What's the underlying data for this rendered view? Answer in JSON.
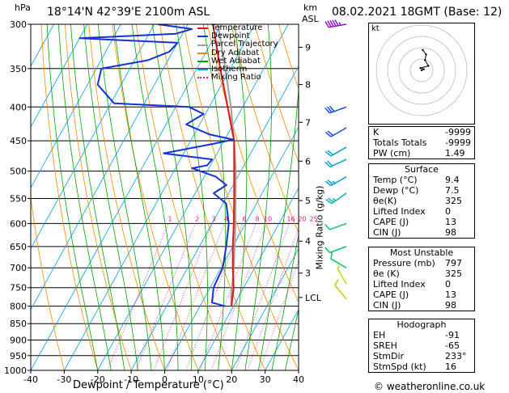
{
  "header": {
    "p_unit": "hPa",
    "location": "18°14'N 42°39'E 2100m ASL",
    "km_unit": "km",
    "asl_label": "ASL",
    "datetime": "08.02.2021 18GMT (Base: 12)"
  },
  "chart_data": {
    "type": "skew-t",
    "xlabel": "Dewpoint / Temperature (°C)",
    "ylabel_right": "Mixing Ratio (g/kg)",
    "xlim": [
      -40,
      40
    ],
    "ylim": [
      300,
      1000
    ],
    "x_ticks": [
      "-40",
      "-30",
      "-20",
      "-10",
      "0",
      "10",
      "20",
      "30",
      "40"
    ],
    "x_tick_values": [
      -40,
      -30,
      -20,
      -10,
      0,
      10,
      20,
      30,
      40
    ],
    "pressure_ticks": [
      "300",
      "350",
      "400",
      "450",
      "500",
      "550",
      "600",
      "650",
      "700",
      "750",
      "800",
      "850",
      "900",
      "950",
      "1000"
    ],
    "pressure_values": [
      300,
      350,
      400,
      450,
      500,
      550,
      600,
      650,
      700,
      750,
      800,
      850,
      900,
      950,
      1000
    ],
    "km_ticks": [
      {
        "label": "9",
        "p": 325
      },
      {
        "label": "8",
        "p": 370
      },
      {
        "label": "7",
        "p": 422
      },
      {
        "label": "6",
        "p": 483
      },
      {
        "label": "5",
        "p": 554
      },
      {
        "label": "4",
        "p": 638
      },
      {
        "label": "3",
        "p": 713
      },
      {
        "label": "LCL",
        "p": 776
      }
    ],
    "mixing_ratio_labels": [
      {
        "label": "1",
        "w": 1
      },
      {
        "label": "2",
        "w": 2
      },
      {
        "label": "3",
        "w": 3
      },
      {
        "label": "4",
        "w": 4
      },
      {
        "label": "6",
        "w": 6
      },
      {
        "label": "8",
        "w": 8
      },
      {
        "label": "10",
        "w": 10
      },
      {
        "label": "16",
        "w": 16
      },
      {
        "label": "20",
        "w": 20
      },
      {
        "label": "25",
        "w": 25
      }
    ],
    "legend": [
      {
        "name": "Temperature",
        "color": "#e01414"
      },
      {
        "name": "Dewpoint",
        "color": "#1432d2"
      },
      {
        "name": "Parcel Trajectory",
        "color": "#a0a0a0"
      },
      {
        "name": "Dry Adiabat",
        "color": "#f08c00"
      },
      {
        "name": "Wet Adiabat",
        "color": "#00a000"
      },
      {
        "name": "Isotherm",
        "color": "#00a0e6"
      },
      {
        "name": "Mixing Ratio",
        "color": "#e6148c"
      }
    ],
    "temperature": [
      {
        "p": 800,
        "t": 9.4
      },
      {
        "p": 750,
        "t": 7.0
      },
      {
        "p": 700,
        "t": 3.5
      },
      {
        "p": 650,
        "t": 0.0
      },
      {
        "p": 600,
        "t": -3.5
      },
      {
        "p": 550,
        "t": -7.5
      },
      {
        "p": 500,
        "t": -12.0
      },
      {
        "p": 450,
        "t": -17.0
      },
      {
        "p": 400,
        "t": -24.5
      },
      {
        "p": 350,
        "t": -33.0
      },
      {
        "p": 300,
        "t": -42.5
      }
    ],
    "dewpoint": [
      {
        "p": 800,
        "t": 7.5
      },
      {
        "p": 790,
        "t": 3.0
      },
      {
        "p": 750,
        "t": 1.0
      },
      {
        "p": 700,
        "t": 0.5
      },
      {
        "p": 650,
        "t": -2.0
      },
      {
        "p": 600,
        "t": -5.0
      },
      {
        "p": 560,
        "t": -9.0
      },
      {
        "p": 540,
        "t": -14.5
      },
      {
        "p": 525,
        "t": -12.0
      },
      {
        "p": 510,
        "t": -16.5
      },
      {
        "p": 495,
        "t": -25.0
      },
      {
        "p": 490,
        "t": -21.0
      },
      {
        "p": 480,
        "t": -20.5
      },
      {
        "p": 470,
        "t": -36.0
      },
      {
        "p": 455,
        "t": -23.0
      },
      {
        "p": 448,
        "t": -17.5
      },
      {
        "p": 440,
        "t": -25.5
      },
      {
        "p": 425,
        "t": -34.0
      },
      {
        "p": 410,
        "t": -30.5
      },
      {
        "p": 400,
        "t": -36.0
      },
      {
        "p": 395,
        "t": -59.0
      },
      {
        "p": 370,
        "t": -67.0
      },
      {
        "p": 350,
        "t": -68.5
      },
      {
        "p": 340,
        "t": -56.0
      },
      {
        "p": 330,
        "t": -51.0
      },
      {
        "p": 320,
        "t": -50.0
      },
      {
        "p": 315,
        "t": -80.0
      },
      {
        "p": 310,
        "t": -52.0
      },
      {
        "p": 305,
        "t": -48.0
      },
      {
        "p": 300,
        "t": -59.0
      }
    ],
    "parcel": [
      {
        "p": 800,
        "t": 9.4
      },
      {
        "p": 776,
        "t": 7.8
      },
      {
        "p": 700,
        "t": 3.8
      },
      {
        "p": 600,
        "t": -3.0
      },
      {
        "p": 500,
        "t": -11.5
      },
      {
        "p": 450,
        "t": -17.0
      },
      {
        "p": 400,
        "t": -23.5
      },
      {
        "p": 350,
        "t": -31.5
      },
      {
        "p": 300,
        "t": -41.0
      }
    ],
    "wind_barbs": [
      {
        "p": 300,
        "dir": 260,
        "kt": 55
      },
      {
        "p": 400,
        "dir": 250,
        "kt": 30
      },
      {
        "p": 430,
        "dir": 240,
        "kt": 20
      },
      {
        "p": 460,
        "dir": 240,
        "kt": 20
      },
      {
        "p": 480,
        "dir": 245,
        "kt": 20
      },
      {
        "p": 510,
        "dir": 240,
        "kt": 25
      },
      {
        "p": 540,
        "dir": 235,
        "kt": 25
      },
      {
        "p": 600,
        "dir": 250,
        "kt": 10
      },
      {
        "p": 650,
        "dir": 250,
        "kt": 10
      },
      {
        "p": 700,
        "dir": 300,
        "kt": 10
      },
      {
        "p": 740,
        "dir": 330,
        "kt": 5
      },
      {
        "p": 780,
        "dir": 320,
        "kt": 10
      }
    ]
  },
  "hodograph": {
    "unit_label": "kt",
    "rings_kt": [
      10,
      20,
      30,
      40
    ],
    "points": [
      [
        0,
        0
      ],
      [
        2,
        1
      ],
      [
        -1,
        2
      ],
      [
        6,
        4
      ],
      [
        3,
        9
      ],
      [
        4,
        14
      ],
      [
        1,
        18
      ]
    ]
  },
  "indices": [
    {
      "label": "K",
      "value": "-9999"
    },
    {
      "label": "Totals Totals",
      "value": "-9999"
    },
    {
      "label": "PW (cm)",
      "value": "1.49"
    }
  ],
  "surface": {
    "title": "Surface",
    "rows": [
      {
        "label": "Temp (°C)",
        "value": "9.4"
      },
      {
        "label": "Dewp (°C)",
        "value": "7.5"
      },
      {
        "label": "θe(K)",
        "value": "325"
      },
      {
        "label": "Lifted Index",
        "value": "0"
      },
      {
        "label": "CAPE (J)",
        "value": "13"
      },
      {
        "label": "CIN (J)",
        "value": "98"
      }
    ]
  },
  "most_unstable": {
    "title": "Most Unstable",
    "rows": [
      {
        "label": "Pressure (mb)",
        "value": "797"
      },
      {
        "label": "θe (K)",
        "value": "325"
      },
      {
        "label": "Lifted Index",
        "value": "0"
      },
      {
        "label": "CAPE (J)",
        "value": "13"
      },
      {
        "label": "CIN (J)",
        "value": "98"
      }
    ]
  },
  "hodo_table": {
    "title": "Hodograph",
    "rows": [
      {
        "label": "EH",
        "value": "-91"
      },
      {
        "label": "SREH",
        "value": "-65"
      },
      {
        "label": "StmDir",
        "value": "233°"
      },
      {
        "label": "StmSpd (kt)",
        "value": "16"
      }
    ]
  },
  "footer": {
    "credit": "© weatheronline.co.uk"
  }
}
